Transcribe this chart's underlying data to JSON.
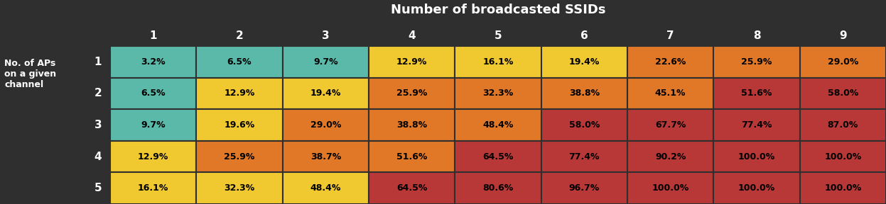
{
  "title": "Number of broadcasted SSIDs",
  "row_label": "No. of APs\non a given\nchannel",
  "col_headers": [
    "1",
    "2",
    "3",
    "4",
    "5",
    "6",
    "7",
    "8",
    "9"
  ],
  "row_headers": [
    "1",
    "2",
    "3",
    "4",
    "5"
  ],
  "values": [
    [
      "3.2%",
      "6.5%",
      "9.7%",
      "12.9%",
      "16.1%",
      "19.4%",
      "22.6%",
      "25.9%",
      "29.0%"
    ],
    [
      "6.5%",
      "12.9%",
      "19.4%",
      "25.9%",
      "32.3%",
      "38.8%",
      "45.1%",
      "51.6%",
      "58.0%"
    ],
    [
      "9.7%",
      "19.6%",
      "29.0%",
      "38.8%",
      "48.4%",
      "58.0%",
      "67.7%",
      "77.4%",
      "87.0%"
    ],
    [
      "12.9%",
      "25.9%",
      "38.7%",
      "51.6%",
      "64.5%",
      "77.4%",
      "90.2%",
      "100.0%",
      "100.0%"
    ],
    [
      "16.1%",
      "32.3%",
      "48.4%",
      "64.5%",
      "80.6%",
      "96.7%",
      "100.0%",
      "100.0%",
      "100.0%"
    ]
  ],
  "cell_colors": [
    [
      "#5ab9a8",
      "#5ab9a8",
      "#5ab9a8",
      "#f0c830",
      "#f0c830",
      "#f0c830",
      "#e07828",
      "#e07828",
      "#e07828"
    ],
    [
      "#5ab9a8",
      "#f0c830",
      "#f0c830",
      "#e07828",
      "#e07828",
      "#e07828",
      "#e07828",
      "#b83838",
      "#b83838"
    ],
    [
      "#5ab9a8",
      "#f0c830",
      "#e07828",
      "#e07828",
      "#e07828",
      "#b83838",
      "#b83838",
      "#b83838",
      "#b83838"
    ],
    [
      "#f0c830",
      "#e07828",
      "#e07828",
      "#e07828",
      "#b83838",
      "#b83838",
      "#b83838",
      "#b83838",
      "#b83838"
    ],
    [
      "#f0c830",
      "#f0c830",
      "#f0c830",
      "#b83838",
      "#b83838",
      "#b83838",
      "#b83838",
      "#b83838",
      "#b83838"
    ]
  ],
  "background_color": "#2f2f2f",
  "text_color": "#000000",
  "header_text_color": "#ffffff",
  "title_color": "#ffffff",
  "figsize": [
    12.47,
    2.88
  ],
  "dpi": 100
}
